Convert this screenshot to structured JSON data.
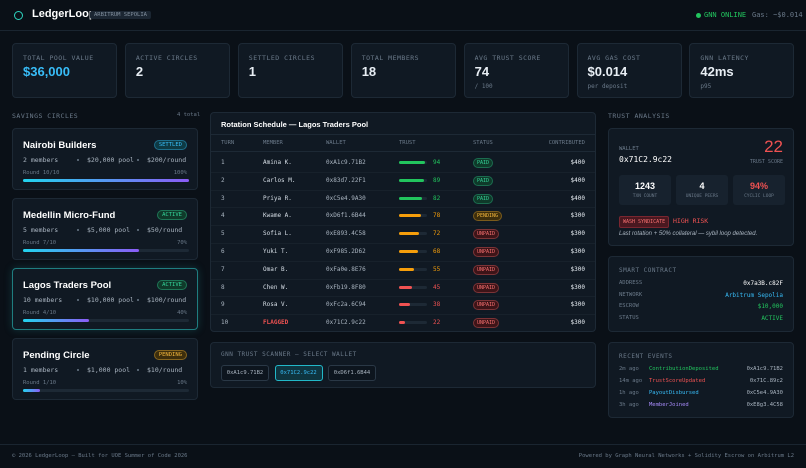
{
  "header": {
    "logo": "LedgerLoop",
    "network": "ARBITRUM SEPOLIA",
    "status": "GNN ONLINE",
    "gas": "Gas: ~$0.014"
  },
  "stats": [
    {
      "label": "TOTAL POOL VALUE",
      "value": "$36,000"
    },
    {
      "label": "ACTIVE CIRCLES",
      "value": "2"
    },
    {
      "label": "SETTLED CIRCLES",
      "value": "1"
    },
    {
      "label": "TOTAL MEMBERS",
      "value": "18"
    },
    {
      "label": "AVG TRUST SCORE",
      "value": "74",
      "sub": "/ 100"
    },
    {
      "label": "AVG GAS COST",
      "value": "$0.014",
      "sub": "per deposit"
    },
    {
      "label": "GNN LATENCY",
      "value": "42ms",
      "sub": "p95"
    }
  ],
  "circles": {
    "title": "SAVINGS CIRCLES",
    "count": "4 total",
    "selected": 2,
    "items": [
      {
        "name": "Nairobi Builders",
        "status": "SETTLED",
        "members": "2 members",
        "pool": "$20,000 pool",
        "per_round": "$200/round",
        "round": "Round 10/10",
        "progress": {
          "value": 100,
          "label": "100%"
        }
      },
      {
        "name": "Medellin Micro-Fund",
        "status": "ACTIVE",
        "members": "5 members",
        "pool": "$5,000 pool",
        "per_round": "$50/round",
        "round": "Round 7/10",
        "progress": {
          "value": 70,
          "label": "70%"
        }
      },
      {
        "name": "Lagos Traders Pool",
        "status": "ACTIVE",
        "members": "10 members",
        "pool": "$10,000 pool",
        "per_round": "$100/round",
        "round": "Round 4/10",
        "progress": {
          "value": 40,
          "label": "40%"
        }
      },
      {
        "name": "Pending Circle",
        "status": "PENDING",
        "members": "1 members",
        "pool": "$1,000 pool",
        "per_round": "$10/round",
        "round": "Round 1/10",
        "progress": {
          "value": 10,
          "label": "10%"
        }
      }
    ]
  },
  "rotation": {
    "title": "Rotation Schedule — Lagos Traders Pool",
    "columns": [
      "TURN",
      "MEMBER",
      "WALLET",
      "TRUST",
      "STATUS",
      "CONTRIBUTED"
    ],
    "rows": [
      [
        "1",
        "Amina K.",
        "0xA1c9.71B2",
        94,
        "PAID",
        "$400"
      ],
      [
        "2",
        "Carlos M.",
        "0x83d7.22F1",
        89,
        "PAID",
        "$400"
      ],
      [
        "3",
        "Priya R.",
        "0xC5e4.9A30",
        82,
        "PAID",
        "$400"
      ],
      [
        "4",
        "Kwame A.",
        "0xD6f1.6B44",
        78,
        "PENDING",
        "$300"
      ],
      [
        "5",
        "Sofia L.",
        "0xE893.4C58",
        72,
        "UNPAID",
        "$300"
      ],
      [
        "6",
        "Yuki T.",
        "0xF985.2D62",
        68,
        "UNPAID",
        "$300"
      ],
      [
        "7",
        "Omar B.",
        "0xFa0e.8E76",
        55,
        "UNPAID",
        "$300"
      ],
      [
        "8",
        "Chen W.",
        "0xFb19.8F80",
        45,
        "UNPAID",
        "$300"
      ],
      [
        "9",
        "Rosa V.",
        "0xFc2a.6C94",
        38,
        "UNPAID",
        "$300"
      ],
      [
        "10",
        "FLAGGED",
        "0x71C2.9c22",
        22,
        "UNPAID",
        "$300"
      ]
    ]
  },
  "scanner": {
    "title": "GNN TRUST SCANNER — SELECT WALLET",
    "selected": 1,
    "wallets": [
      "0xA1c9.71B2",
      "0x71C2.9c22",
      "0xD6f1.6B44"
    ]
  },
  "trust": {
    "title": "TRUST ANALYSIS",
    "wallet_label": "WALLET",
    "wallet": "0x71C2.9c22",
    "score": 22,
    "score_label": "TRUST SCORE",
    "metrics": [
      {
        "value": "1243",
        "label": "TXN COUNT"
      },
      {
        "value": "4",
        "label": "UNIQUE PEERS"
      },
      {
        "value": "94%",
        "label": "CYCLIC LOOP"
      }
    ],
    "tag": "WASH SYNDICATE",
    "risk": "HIGH RISK",
    "note": "Last rotation + 50% collateral — sybil loop detected."
  },
  "contract": {
    "title": "SMART CONTRACT",
    "rows": [
      [
        "ADDRESS",
        "0x7a3B.c82F"
      ],
      [
        "NETWORK",
        "Arbitrum Sepolia"
      ],
      [
        "ESCROW",
        "$10,000"
      ],
      [
        "STATUS",
        "ACTIVE"
      ]
    ]
  },
  "events": {
    "title": "RECENT EVENTS",
    "rows": [
      [
        "2m ago",
        "ContributionDeposited",
        "0xA1c9.71B2"
      ],
      [
        "14m ago",
        "TrustScoreUpdated",
        "0x71C.89c2"
      ],
      [
        "1h ago",
        "PayoutDisbursed",
        "0xC5e4.9A30"
      ],
      [
        "3h ago",
        "MemberJoined",
        "0xE8g3.4C58"
      ]
    ]
  },
  "footer": {
    "left": "© 2026 LedgerLoop — Built for UOE Summer of Code 2026",
    "right": "Powered by Graph Neural Networks + Solidity Escrow on Arbitrum L2"
  }
}
